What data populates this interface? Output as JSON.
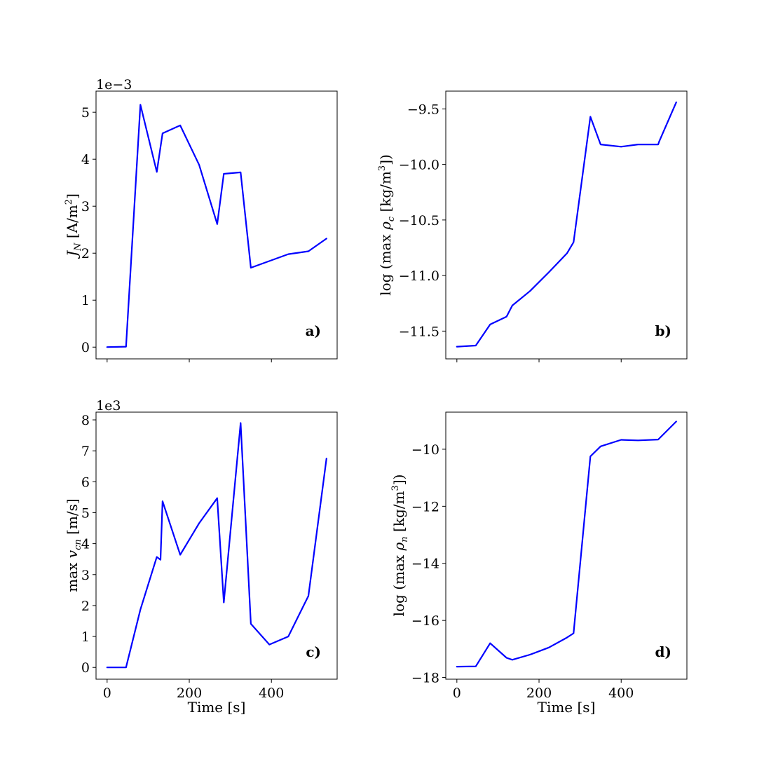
{
  "figure": {
    "background": "#ffffff",
    "line_color": "#0000ff"
  },
  "chart_data": [
    {
      "id": "a",
      "type": "line",
      "panel_label": "a)",
      "ylabel_text": "J_N [A/m²]",
      "ylabel_parts": {
        "main": "J",
        "sub": "N",
        "unit": " [A/m",
        "sup": "2",
        "close": "]"
      },
      "offset_text": "1e−3",
      "xlim": [
        -27,
        560
      ],
      "ylim": [
        -0.25,
        5.45
      ],
      "xticks": [
        0,
        200,
        400
      ],
      "xtick_labels": [
        "",
        "",
        ""
      ],
      "yticks": [
        0,
        1,
        2,
        3,
        4,
        5
      ],
      "ytick_labels": [
        "0",
        "1",
        "2",
        "3",
        "4",
        "5"
      ],
      "series": [
        {
          "color": "#0000ff",
          "x": [
            0,
            46,
            81,
            121,
            135,
            178,
            224,
            268,
            284,
            325,
            350,
            441,
            490,
            534
          ],
          "y": [
            0.0,
            0.01,
            5.16,
            3.73,
            4.55,
            4.72,
            3.88,
            2.62,
            3.69,
            3.72,
            1.69,
            1.98,
            2.04,
            2.31
          ]
        }
      ]
    },
    {
      "id": "b",
      "type": "line",
      "panel_label": "b)",
      "ylabel_text": "log (max ρ_c [kg/m³])",
      "ylabel_parts": {
        "pre": "log (max ",
        "main": "ρ",
        "sub": "c",
        "unit": " [kg/m",
        "sup": "3",
        "close": "])"
      },
      "offset_text": "",
      "xlim": [
        -27,
        560
      ],
      "ylim": [
        -11.75,
        -9.34
      ],
      "xticks": [
        0,
        200,
        400
      ],
      "xtick_labels": [
        "",
        "",
        ""
      ],
      "yticks": [
        -11.5,
        -11.0,
        -10.5,
        -10.0,
        -9.5
      ],
      "ytick_labels": [
        "−11.5",
        "−11.0",
        "−10.5",
        "−10.0",
        "−9.5"
      ],
      "series": [
        {
          "color": "#0000ff",
          "x": [
            0,
            46,
            81,
            121,
            135,
            178,
            224,
            268,
            284,
            325,
            350,
            400,
            441,
            490,
            493,
            534
          ],
          "y": [
            -11.64,
            -11.63,
            -11.44,
            -11.37,
            -11.27,
            -11.14,
            -10.97,
            -10.8,
            -10.7,
            -9.57,
            -9.82,
            -9.84,
            -9.82,
            -9.82,
            -9.79,
            -9.44
          ]
        }
      ]
    },
    {
      "id": "c",
      "type": "line",
      "panel_label": "c)",
      "ylabel_text": "max v_cn [m/s]",
      "ylabel_parts": {
        "pre": "max ",
        "main": "v",
        "sub": "cn",
        "unit": " [m/s]",
        "sup": "",
        "close": ""
      },
      "offset_text": "1e3",
      "xlim": [
        -27,
        560
      ],
      "ylim": [
        -0.38,
        8.25
      ],
      "xticks": [
        0,
        200,
        400
      ],
      "xtick_labels": [
        "0",
        "200",
        "400"
      ],
      "yticks": [
        0,
        1,
        2,
        3,
        4,
        5,
        6,
        7,
        8
      ],
      "ytick_labels": [
        "0",
        "1",
        "2",
        "3",
        "4",
        "5",
        "6",
        "7",
        "8"
      ],
      "xlabel": "Time [s]",
      "series": [
        {
          "color": "#0000ff",
          "x": [
            0,
            46,
            81,
            121,
            130,
            135,
            178,
            224,
            268,
            284,
            325,
            350,
            395,
            441,
            490,
            534
          ],
          "y": [
            0.0,
            0.0,
            1.87,
            3.57,
            3.48,
            5.37,
            3.64,
            4.66,
            5.47,
            2.1,
            7.9,
            1.41,
            0.74,
            1.0,
            2.31,
            6.75
          ]
        }
      ]
    },
    {
      "id": "d",
      "type": "line",
      "panel_label": "d)",
      "ylabel_text": "log (max ρ_n [kg/m³])",
      "ylabel_parts": {
        "pre": "log (max ",
        "main": "ρ",
        "sub": "n",
        "unit": " [kg/m",
        "sup": "3",
        "close": "])"
      },
      "offset_text": "",
      "xlim": [
        -27,
        560
      ],
      "ylim": [
        -18.06,
        -8.7
      ],
      "xticks": [
        0,
        200,
        400
      ],
      "xtick_labels": [
        "0",
        "200",
        "400"
      ],
      "yticks": [
        -18,
        -16,
        -14,
        -12,
        -10
      ],
      "ytick_labels": [
        "−18",
        "−16",
        "−14",
        "−12",
        "−10"
      ],
      "xlabel": "Time [s]",
      "series": [
        {
          "color": "#0000ff",
          "x": [
            0,
            46,
            81,
            121,
            135,
            178,
            224,
            268,
            284,
            325,
            350,
            400,
            441,
            490,
            534
          ],
          "y": [
            -17.62,
            -17.61,
            -16.8,
            -17.31,
            -17.38,
            -17.2,
            -16.95,
            -16.6,
            -16.45,
            -10.25,
            -9.9,
            -9.67,
            -9.69,
            -9.66,
            -9.03
          ]
        }
      ]
    }
  ]
}
